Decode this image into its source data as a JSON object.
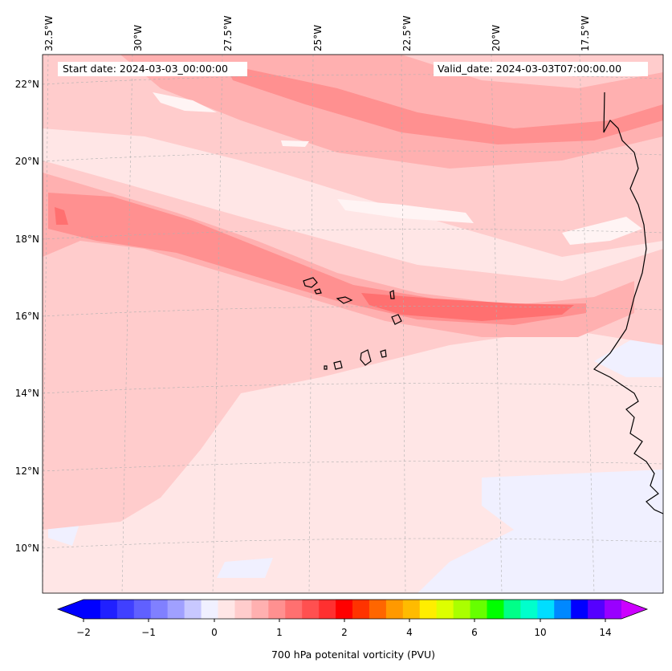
{
  "map": {
    "start_label": "Start date: 2024-03-03_00:00:00",
    "valid_label": "Valid_date: 2024-03-03T07:00:00.00",
    "lon_labels": [
      "32.5°W",
      "30°W",
      "27.5°W",
      "25°W",
      "22.5°W",
      "20°W",
      "17.5°W"
    ],
    "lat_labels": [
      "22°N",
      "20°N",
      "18°N",
      "16°N",
      "14°N",
      "12°N",
      "10°N"
    ],
    "variable": "700 hPa potential vorticity",
    "islands": "Cape Verde"
  },
  "colorbar": {
    "title": "700 hPa potenital vorticity (PVU)",
    "tick_labels": [
      "−2",
      "−1",
      "0",
      "1",
      "2",
      "4",
      "6",
      "10",
      "14"
    ],
    "colors": [
      "#0000ff",
      "#2020ff",
      "#4040ff",
      "#6060ff",
      "#8080ff",
      "#a0a0ff",
      "#c8c8ff",
      "#f0f0ff",
      "#ffe6e6",
      "#ffcccc",
      "#ffb0b0",
      "#ff9090",
      "#ff7070",
      "#ff5050",
      "#ff3030",
      "#ff0000",
      "#ff3300",
      "#ff6600",
      "#ff9900",
      "#ffbb00",
      "#ffee00",
      "#ddff00",
      "#aaff00",
      "#66ff00",
      "#00ff00",
      "#00ff88",
      "#00ffcc",
      "#00ddff",
      "#0088ff",
      "#0000ff",
      "#5500ff",
      "#9900ff"
    ],
    "low_extend_color": "#0000ff",
    "high_extend_color": "#cc00ff"
  }
}
